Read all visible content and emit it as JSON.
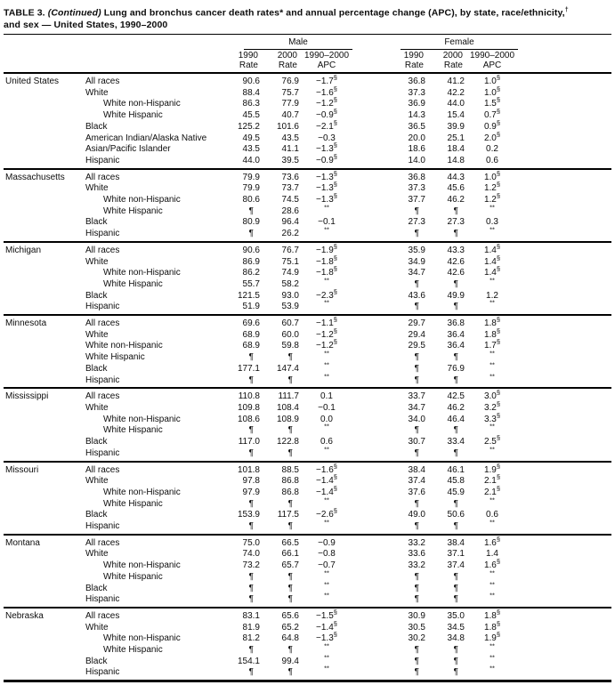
{
  "title": {
    "prefix": "TABLE 3.",
    "continued": "(Continued)",
    "segment1": "Lung and bronchus cancer death rates",
    "star": "*",
    "segment2": " and annual percentage change (APC), by state, race/ethnicity,",
    "dagger": "†",
    "segment3": "and sex — United States, 1990–2000"
  },
  "header": {
    "male_label": "Male",
    "female_label": "Female",
    "subcols": [
      {
        "line1": "1990",
        "line2": "Rate"
      },
      {
        "line1": "2000",
        "line2": "Rate"
      },
      {
        "line1": "1990–2000",
        "line2": "APC"
      }
    ]
  },
  "footnote_symbols": {
    "suppressed_rate": "¶",
    "suppressed_apc": "**",
    "significant_apc": "§"
  },
  "table": {
    "states": [
      {
        "name": "United States",
        "rows": [
          {
            "label": "All races",
            "indent": false,
            "m1990": "90.6",
            "m2000": "76.9",
            "mapc": "−1.7",
            "mapc_sup": "§",
            "f1990": "36.8",
            "f2000": "41.2",
            "fapc": "1.0",
            "fapc_sup": "§"
          },
          {
            "label": "White",
            "indent": false,
            "m1990": "88.4",
            "m2000": "75.7",
            "mapc": "−1.6",
            "mapc_sup": "§",
            "f1990": "37.3",
            "f2000": "42.2",
            "fapc": "1.0",
            "fapc_sup": "§"
          },
          {
            "label": "White non-Hispanic",
            "indent": true,
            "m1990": "86.3",
            "m2000": "77.9",
            "mapc": "−1.2",
            "mapc_sup": "§",
            "f1990": "36.9",
            "f2000": "44.0",
            "fapc": "1.5",
            "fapc_sup": "§"
          },
          {
            "label": "White Hispanic",
            "indent": true,
            "m1990": "45.5",
            "m2000": "40.7",
            "mapc": "−0.9",
            "mapc_sup": "§",
            "f1990": "14.3",
            "f2000": "15.4",
            "fapc": "0.7",
            "fapc_sup": "§"
          },
          {
            "label": "Black",
            "indent": false,
            "m1990": "125.2",
            "m2000": "101.6",
            "mapc": "−2.1",
            "mapc_sup": "§",
            "f1990": "36.5",
            "f2000": "39.9",
            "fapc": "0.9",
            "fapc_sup": "§"
          },
          {
            "label": "American Indian/Alaska Native",
            "indent": false,
            "m1990": "49.5",
            "m2000": "43.5",
            "mapc": "−0.3",
            "mapc_sup": "",
            "f1990": "20.0",
            "f2000": "25.1",
            "fapc": "2.0",
            "fapc_sup": "§"
          },
          {
            "label": "Asian/Pacific Islander",
            "indent": false,
            "m1990": "43.5",
            "m2000": "41.1",
            "mapc": "−1.3",
            "mapc_sup": "§",
            "f1990": "18.6",
            "f2000": "18.4",
            "fapc": "0.2",
            "fapc_sup": ""
          },
          {
            "label": "Hispanic",
            "indent": false,
            "m1990": "44.0",
            "m2000": "39.5",
            "mapc": "−0.9",
            "mapc_sup": "§",
            "f1990": "14.0",
            "f2000": "14.8",
            "fapc": "0.6",
            "fapc_sup": ""
          }
        ]
      },
      {
        "name": "Massachusetts",
        "rows": [
          {
            "label": "All races",
            "indent": false,
            "m1990": "79.9",
            "m2000": "73.6",
            "mapc": "−1.3",
            "mapc_sup": "§",
            "f1990": "36.8",
            "f2000": "44.3",
            "fapc": "1.0",
            "fapc_sup": "§"
          },
          {
            "label": "White",
            "indent": false,
            "m1990": "79.9",
            "m2000": "73.7",
            "mapc": "−1.3",
            "mapc_sup": "§",
            "f1990": "37.3",
            "f2000": "45.6",
            "fapc": "1.2",
            "fapc_sup": "§"
          },
          {
            "label": "White non-Hispanic",
            "indent": true,
            "m1990": "80.6",
            "m2000": "74.5",
            "mapc": "−1.3",
            "mapc_sup": "§",
            "f1990": "37.7",
            "f2000": "46.2",
            "fapc": "1.2",
            "fapc_sup": "§"
          },
          {
            "label": "White Hispanic",
            "indent": true,
            "m1990": "¶",
            "m2000": "28.6",
            "mapc": "",
            "mapc_sup": "**",
            "f1990": "¶",
            "f2000": "¶",
            "fapc": "",
            "fapc_sup": "**"
          },
          {
            "label": "Black",
            "indent": false,
            "m1990": "80.9",
            "m2000": "96.4",
            "mapc": "−0.1",
            "mapc_sup": "",
            "f1990": "27.3",
            "f2000": "27.3",
            "fapc": "0.3",
            "fapc_sup": ""
          },
          {
            "label": "Hispanic",
            "indent": false,
            "m1990": "¶",
            "m2000": "26.2",
            "mapc": "",
            "mapc_sup": "**",
            "f1990": "¶",
            "f2000": "¶",
            "fapc": "",
            "fapc_sup": "**"
          }
        ]
      },
      {
        "name": "Michigan",
        "rows": [
          {
            "label": "All races",
            "indent": false,
            "m1990": "90.6",
            "m2000": "76.7",
            "mapc": "−1.9",
            "mapc_sup": "§",
            "f1990": "35.9",
            "f2000": "43.3",
            "fapc": "1.4",
            "fapc_sup": "§"
          },
          {
            "label": "White",
            "indent": false,
            "m1990": "86.9",
            "m2000": "75.1",
            "mapc": "−1.8",
            "mapc_sup": "§",
            "f1990": "34.9",
            "f2000": "42.6",
            "fapc": "1.4",
            "fapc_sup": "§"
          },
          {
            "label": "White non-Hispanic",
            "indent": true,
            "m1990": "86.2",
            "m2000": "74.9",
            "mapc": "−1.8",
            "mapc_sup": "§",
            "f1990": "34.7",
            "f2000": "42.6",
            "fapc": "1.4",
            "fapc_sup": "§"
          },
          {
            "label": "White Hispanic",
            "indent": true,
            "m1990": "55.7",
            "m2000": "58.2",
            "mapc": "",
            "mapc_sup": "**",
            "f1990": "¶",
            "f2000": "¶",
            "fapc": "",
            "fapc_sup": "**"
          },
          {
            "label": "Black",
            "indent": false,
            "m1990": "121.5",
            "m2000": "93.0",
            "mapc": "−2.3",
            "mapc_sup": "§",
            "f1990": "43.6",
            "f2000": "49.9",
            "fapc": "1.2",
            "fapc_sup": ""
          },
          {
            "label": "Hispanic",
            "indent": false,
            "m1990": "51.9",
            "m2000": "53.9",
            "mapc": "",
            "mapc_sup": "**",
            "f1990": "¶",
            "f2000": "¶",
            "fapc": "",
            "fapc_sup": "**"
          }
        ]
      },
      {
        "name": "Minnesota",
        "rows": [
          {
            "label": "All races",
            "indent": false,
            "m1990": "69.6",
            "m2000": "60.7",
            "mapc": "−1.1",
            "mapc_sup": "§",
            "f1990": "29.7",
            "f2000": "36.8",
            "fapc": "1.8",
            "fapc_sup": "§"
          },
          {
            "label": "White",
            "indent": false,
            "m1990": "68.9",
            "m2000": "60.0",
            "mapc": "−1.2",
            "mapc_sup": "§",
            "f1990": "29.4",
            "f2000": "36.4",
            "fapc": "1.8",
            "fapc_sup": "§"
          },
          {
            "label": "White non-Hispanic",
            "indent": false,
            "m1990": "68.9",
            "m2000": "59.8",
            "mapc": "−1.2",
            "mapc_sup": "§",
            "f1990": "29.5",
            "f2000": "36.4",
            "fapc": "1.7",
            "fapc_sup": "§"
          },
          {
            "label": "White Hispanic",
            "indent": false,
            "m1990": "¶",
            "m2000": "¶",
            "mapc": "",
            "mapc_sup": "**",
            "f1990": "¶",
            "f2000": "¶",
            "fapc": "",
            "fapc_sup": "**"
          },
          {
            "label": "Black",
            "indent": false,
            "m1990": "177.1",
            "m2000": "147.4",
            "mapc": "",
            "mapc_sup": "**",
            "f1990": "¶",
            "f2000": "76.9",
            "fapc": "",
            "fapc_sup": "**"
          },
          {
            "label": "Hispanic",
            "indent": false,
            "m1990": "¶",
            "m2000": "¶",
            "mapc": "",
            "mapc_sup": "**",
            "f1990": "¶",
            "f2000": "¶",
            "fapc": "",
            "fapc_sup": "**"
          }
        ]
      },
      {
        "name": "Mississippi",
        "rows": [
          {
            "label": "All races",
            "indent": false,
            "m1990": "110.8",
            "m2000": "111.7",
            "mapc": "0.1",
            "mapc_sup": "",
            "f1990": "33.7",
            "f2000": "42.5",
            "fapc": "3.0",
            "fapc_sup": "§"
          },
          {
            "label": "White",
            "indent": false,
            "m1990": "109.8",
            "m2000": "108.4",
            "mapc": "−0.1",
            "mapc_sup": "",
            "f1990": "34.7",
            "f2000": "46.2",
            "fapc": "3.2",
            "fapc_sup": "§"
          },
          {
            "label": "White non-Hispanic",
            "indent": true,
            "m1990": "108.6",
            "m2000": "108.9",
            "mapc": "0.0",
            "mapc_sup": "",
            "f1990": "34.0",
            "f2000": "46.4",
            "fapc": "3.3",
            "fapc_sup": "§"
          },
          {
            "label": "White Hispanic",
            "indent": true,
            "m1990": "¶",
            "m2000": "¶",
            "mapc": "",
            "mapc_sup": "**",
            "f1990": "¶",
            "f2000": "¶",
            "fapc": "",
            "fapc_sup": "**"
          },
          {
            "label": "Black",
            "indent": false,
            "m1990": "117.0",
            "m2000": "122.8",
            "mapc": "0.6",
            "mapc_sup": "",
            "f1990": "30.7",
            "f2000": "33.4",
            "fapc": "2.5",
            "fapc_sup": "§"
          },
          {
            "label": "Hispanic",
            "indent": false,
            "m1990": "¶",
            "m2000": "¶",
            "mapc": "",
            "mapc_sup": "**",
            "f1990": "¶",
            "f2000": "¶",
            "fapc": "",
            "fapc_sup": "**"
          }
        ]
      },
      {
        "name": "Missouri",
        "rows": [
          {
            "label": "All races",
            "indent": false,
            "m1990": "101.8",
            "m2000": "88.5",
            "mapc": "−1.6",
            "mapc_sup": "§",
            "f1990": "38.4",
            "f2000": "46.1",
            "fapc": "1.9",
            "fapc_sup": "§"
          },
          {
            "label": "White",
            "indent": false,
            "m1990": "97.8",
            "m2000": "86.8",
            "mapc": "−1.4",
            "mapc_sup": "§",
            "f1990": "37.4",
            "f2000": "45.8",
            "fapc": "2.1",
            "fapc_sup": "§"
          },
          {
            "label": "White non-Hispanic",
            "indent": true,
            "m1990": "97.9",
            "m2000": "86.8",
            "mapc": "−1.4",
            "mapc_sup": "§",
            "f1990": "37.6",
            "f2000": "45.9",
            "fapc": "2.1",
            "fapc_sup": "§"
          },
          {
            "label": "White Hispanic",
            "indent": true,
            "m1990": "¶",
            "m2000": "¶",
            "mapc": "",
            "mapc_sup": "**",
            "f1990": "¶",
            "f2000": "¶",
            "fapc": "",
            "fapc_sup": "**"
          },
          {
            "label": "Black",
            "indent": false,
            "m1990": "153.9",
            "m2000": "117.5",
            "mapc": "−2.6",
            "mapc_sup": "§",
            "f1990": "49.0",
            "f2000": "50.6",
            "fapc": "0.6",
            "fapc_sup": ""
          },
          {
            "label": "Hispanic",
            "indent": false,
            "m1990": "¶",
            "m2000": "¶",
            "mapc": "",
            "mapc_sup": "**",
            "f1990": "¶",
            "f2000": "¶",
            "fapc": "",
            "fapc_sup": "**"
          }
        ]
      },
      {
        "name": "Montana",
        "rows": [
          {
            "label": "All races",
            "indent": false,
            "m1990": "75.0",
            "m2000": "66.5",
            "mapc": "−0.9",
            "mapc_sup": "",
            "f1990": "33.2",
            "f2000": "38.4",
            "fapc": "1.6",
            "fapc_sup": "§"
          },
          {
            "label": "White",
            "indent": false,
            "m1990": "74.0",
            "m2000": "66.1",
            "mapc": "−0.8",
            "mapc_sup": "",
            "f1990": "33.6",
            "f2000": "37.1",
            "fapc": "1.4",
            "fapc_sup": ""
          },
          {
            "label": "White non-Hispanic",
            "indent": true,
            "m1990": "73.2",
            "m2000": "65.7",
            "mapc": "−0.7",
            "mapc_sup": "",
            "f1990": "33.2",
            "f2000": "37.4",
            "fapc": "1.6",
            "fapc_sup": "§"
          },
          {
            "label": "White Hispanic",
            "indent": true,
            "m1990": "¶",
            "m2000": "¶",
            "mapc": "",
            "mapc_sup": "**",
            "f1990": "¶",
            "f2000": "¶",
            "fapc": "",
            "fapc_sup": "**"
          },
          {
            "label": "Black",
            "indent": false,
            "m1990": "¶",
            "m2000": "¶",
            "mapc": "",
            "mapc_sup": "**",
            "f1990": "¶",
            "f2000": "¶",
            "fapc": "",
            "fapc_sup": "**"
          },
          {
            "label": "Hispanic",
            "indent": false,
            "m1990": "¶",
            "m2000": "¶",
            "mapc": "",
            "mapc_sup": "**",
            "f1990": "¶",
            "f2000": "¶",
            "fapc": "",
            "fapc_sup": "**"
          }
        ]
      },
      {
        "name": "Nebraska",
        "rows": [
          {
            "label": "All races",
            "indent": false,
            "m1990": "83.1",
            "m2000": "65.6",
            "mapc": "−1.5",
            "mapc_sup": "§",
            "f1990": "30.9",
            "f2000": "35.0",
            "fapc": "1.8",
            "fapc_sup": "§"
          },
          {
            "label": "White",
            "indent": false,
            "m1990": "81.9",
            "m2000": "65.2",
            "mapc": "−1.4",
            "mapc_sup": "§",
            "f1990": "30.5",
            "f2000": "34.5",
            "fapc": "1.8",
            "fapc_sup": "§"
          },
          {
            "label": "White non-Hispanic",
            "indent": true,
            "m1990": "81.2",
            "m2000": "64.8",
            "mapc": "−1.3",
            "mapc_sup": "§",
            "f1990": "30.2",
            "f2000": "34.8",
            "fapc": "1.9",
            "fapc_sup": "§"
          },
          {
            "label": "White Hispanic",
            "indent": true,
            "m1990": "¶",
            "m2000": "¶",
            "mapc": "",
            "mapc_sup": "**",
            "f1990": "¶",
            "f2000": "¶",
            "fapc": "",
            "fapc_sup": "**"
          },
          {
            "label": "Black",
            "indent": false,
            "m1990": "154.1",
            "m2000": "99.4",
            "mapc": "",
            "mapc_sup": "**",
            "f1990": "¶",
            "f2000": "¶",
            "fapc": "",
            "fapc_sup": "**"
          },
          {
            "label": "Hispanic",
            "indent": false,
            "m1990": "¶",
            "m2000": "¶",
            "mapc": "",
            "mapc_sup": "**",
            "f1990": "¶",
            "f2000": "¶",
            "fapc": "",
            "fapc_sup": "**"
          }
        ]
      }
    ]
  }
}
